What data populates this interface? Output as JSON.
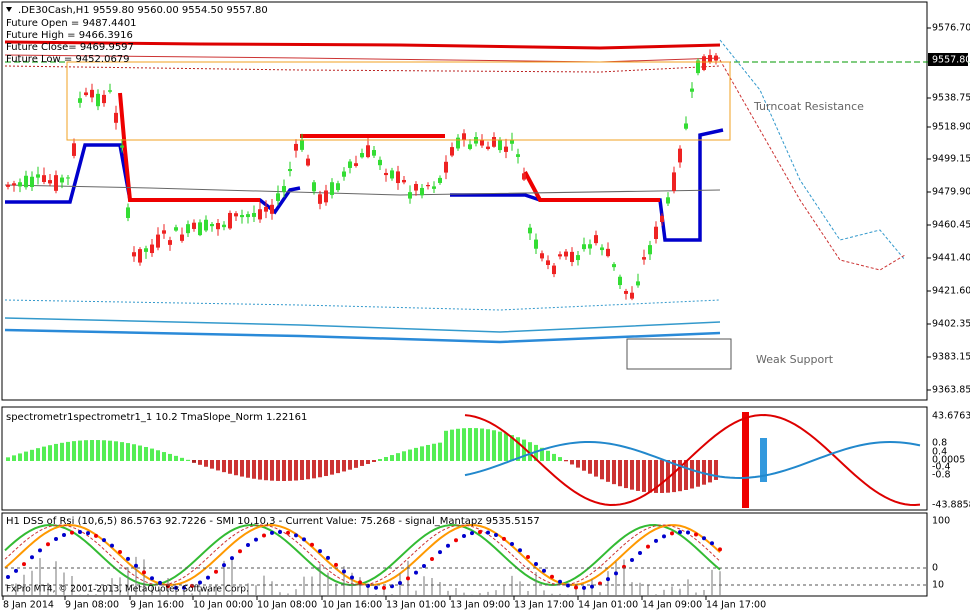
{
  "header": {
    "title": ".DE30Cash,H1  9559.80 9560.00 9554.50 9557.80",
    "lines": [
      "Future Open = 9487.4401",
      "Future High = 9466.3916",
      "Future Close= 9469.9597",
      "Future Low = 9452.0679"
    ]
  },
  "price_axis": {
    "labels": [
      "9576.70",
      "9538.75",
      "9518.90",
      "9499.15",
      "9479.90",
      "9460.45",
      "9441.40",
      "9421.60",
      "9402.35",
      "9383.15",
      "9363.85"
    ],
    "current": "9557.80"
  },
  "annotations": {
    "resistance": "Turncoat Resistance",
    "support": "Weak Support"
  },
  "panel2": {
    "label": "spectrometr1spectrometr1_1  10.2 TmaSlope_Norm 1.22161",
    "axis": [
      "43.6763",
      "0.8",
      "0.4",
      "0.0005",
      "-0.4",
      "-0.8",
      "-43.8858"
    ]
  },
  "panel3": {
    "label": "H1 DSS of Rsi (10,6,5) 86.5763 92.7226 - SMI 10,10,3 - Current Value: 75.268 - signal_Mantapz 9535.5157",
    "axis": [
      "100",
      "0",
      "10"
    ],
    "copyright": "FxPro MT4, © 2001-2013, MetaQuotes Software Corp."
  },
  "time_axis": {
    "labels": [
      "8 Jan 2014",
      "9 Jan 08:00",
      "9 Jan 16:00",
      "10 Jan 00:00",
      "10 Jan 08:00",
      "10 Jan 16:00",
      "13 Jan 01:00",
      "13 Jan 09:00",
      "13 Jan 17:00",
      "14 Jan 01:00",
      "14 Jan 09:00",
      "14 Jan 17:00"
    ]
  }
}
